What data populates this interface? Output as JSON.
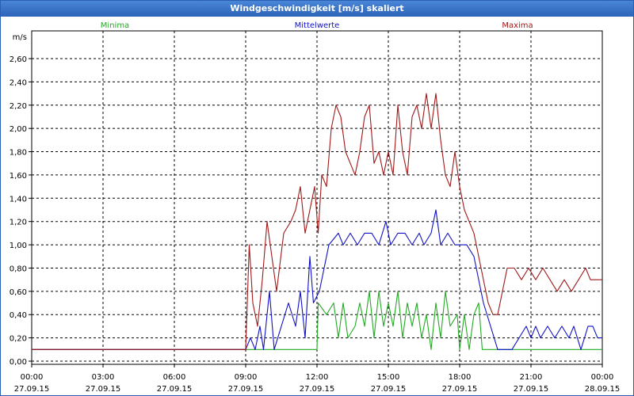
{
  "window": {
    "title": "Windgeschwindigkeit [m/s] skaliert"
  },
  "chart_data": {
    "type": "line",
    "title": "Windgeschwindigkeit [m/s] skaliert",
    "ylabel": "m/s",
    "ylim": [
      0,
      2.8
    ],
    "xlim_hours": [
      0,
      24
    ],
    "grid": true,
    "legend_placement": "top",
    "y_ticks": [
      "0,00",
      "0,20",
      "0,40",
      "0,60",
      "0,80",
      "1,00",
      "1,20",
      "1,40",
      "1,60",
      "1,80",
      "2,00",
      "2,20",
      "2,40",
      "2,60"
    ],
    "x_ticks": [
      {
        "time": "00:00",
        "date": "27.09.15"
      },
      {
        "time": "03:00",
        "date": "27.09.15"
      },
      {
        "time": "06:00",
        "date": "27.09.15"
      },
      {
        "time": "09:00",
        "date": "27.09.15"
      },
      {
        "time": "12:00",
        "date": "27.09.15"
      },
      {
        "time": "15:00",
        "date": "27.09.15"
      },
      {
        "time": "18:00",
        "date": "27.09.15"
      },
      {
        "time": "21:00",
        "date": "27.09.15"
      },
      {
        "time": "00:00",
        "date": "28.09.15"
      }
    ],
    "series": [
      {
        "name": "Minima",
        "color": "#22aa22",
        "points": [
          [
            0,
            0.1
          ],
          [
            12.0,
            0.1
          ],
          [
            12.05,
            0.5
          ],
          [
            12.4,
            0.4
          ],
          [
            12.7,
            0.5
          ],
          [
            12.9,
            0.2
          ],
          [
            13.1,
            0.5
          ],
          [
            13.3,
            0.2
          ],
          [
            13.6,
            0.3
          ],
          [
            13.8,
            0.5
          ],
          [
            14.0,
            0.3
          ],
          [
            14.2,
            0.6
          ],
          [
            14.4,
            0.2
          ],
          [
            14.6,
            0.6
          ],
          [
            14.8,
            0.3
          ],
          [
            15.0,
            0.5
          ],
          [
            15.2,
            0.3
          ],
          [
            15.4,
            0.6
          ],
          [
            15.6,
            0.2
          ],
          [
            15.8,
            0.5
          ],
          [
            16.0,
            0.3
          ],
          [
            16.2,
            0.5
          ],
          [
            16.4,
            0.2
          ],
          [
            16.6,
            0.4
          ],
          [
            16.8,
            0.1
          ],
          [
            17.0,
            0.5
          ],
          [
            17.2,
            0.2
          ],
          [
            17.4,
            0.6
          ],
          [
            17.6,
            0.3
          ],
          [
            17.9,
            0.4
          ],
          [
            18.0,
            0.1
          ],
          [
            18.2,
            0.4
          ],
          [
            18.4,
            0.1
          ],
          [
            18.6,
            0.4
          ],
          [
            18.8,
            0.5
          ],
          [
            18.95,
            0.1
          ],
          [
            24,
            0.1
          ]
        ]
      },
      {
        "name": "Mittelwerte",
        "color": "#1010c8",
        "points": [
          [
            0,
            0.1
          ],
          [
            9.0,
            0.1
          ],
          [
            9.2,
            0.2
          ],
          [
            9.4,
            0.1
          ],
          [
            9.6,
            0.3
          ],
          [
            9.75,
            0.1
          ],
          [
            10.0,
            0.6
          ],
          [
            10.2,
            0.1
          ],
          [
            10.5,
            0.3
          ],
          [
            10.8,
            0.5
          ],
          [
            11.1,
            0.3
          ],
          [
            11.3,
            0.6
          ],
          [
            11.5,
            0.2
          ],
          [
            11.7,
            0.9
          ],
          [
            11.85,
            0.5
          ],
          [
            12.1,
            0.6
          ],
          [
            12.5,
            1.0
          ],
          [
            12.9,
            1.1
          ],
          [
            13.1,
            1.0
          ],
          [
            13.4,
            1.1
          ],
          [
            13.7,
            1.0
          ],
          [
            14.0,
            1.1
          ],
          [
            14.3,
            1.1
          ],
          [
            14.6,
            1.0
          ],
          [
            14.9,
            1.2
          ],
          [
            15.1,
            1.0
          ],
          [
            15.4,
            1.1
          ],
          [
            15.7,
            1.1
          ],
          [
            16.0,
            1.0
          ],
          [
            16.3,
            1.1
          ],
          [
            16.5,
            1.0
          ],
          [
            16.8,
            1.1
          ],
          [
            17.0,
            1.3
          ],
          [
            17.2,
            1.0
          ],
          [
            17.5,
            1.1
          ],
          [
            17.8,
            1.0
          ],
          [
            18.0,
            1.0
          ],
          [
            18.3,
            1.0
          ],
          [
            18.6,
            0.9
          ],
          [
            18.8,
            0.7
          ],
          [
            19.0,
            0.5
          ],
          [
            19.3,
            0.3
          ],
          [
            19.6,
            0.1
          ],
          [
            20.2,
            0.1
          ],
          [
            20.5,
            0.2
          ],
          [
            20.8,
            0.3
          ],
          [
            21.0,
            0.2
          ],
          [
            21.2,
            0.3
          ],
          [
            21.4,
            0.2
          ],
          [
            21.7,
            0.3
          ],
          [
            22.0,
            0.2
          ],
          [
            22.3,
            0.3
          ],
          [
            22.6,
            0.2
          ],
          [
            22.8,
            0.3
          ],
          [
            23.1,
            0.1
          ],
          [
            23.4,
            0.3
          ],
          [
            23.6,
            0.3
          ],
          [
            23.8,
            0.2
          ],
          [
            24,
            0.2
          ]
        ]
      },
      {
        "name": "Maxima",
        "color": "#a01818",
        "points": [
          [
            0,
            0.1
          ],
          [
            9.0,
            0.1
          ],
          [
            9.15,
            1.0
          ],
          [
            9.3,
            0.5
          ],
          [
            9.5,
            0.3
          ],
          [
            9.7,
            0.7
          ],
          [
            9.9,
            1.2
          ],
          [
            10.1,
            0.9
          ],
          [
            10.3,
            0.6
          ],
          [
            10.6,
            1.1
          ],
          [
            10.9,
            1.2
          ],
          [
            11.1,
            1.3
          ],
          [
            11.3,
            1.5
          ],
          [
            11.5,
            1.1
          ],
          [
            11.7,
            1.3
          ],
          [
            11.9,
            1.5
          ],
          [
            12.05,
            1.1
          ],
          [
            12.2,
            1.6
          ],
          [
            12.4,
            1.5
          ],
          [
            12.6,
            2.0
          ],
          [
            12.8,
            2.2
          ],
          [
            13.0,
            2.1
          ],
          [
            13.2,
            1.8
          ],
          [
            13.4,
            1.7
          ],
          [
            13.6,
            1.6
          ],
          [
            13.8,
            1.8
          ],
          [
            14.0,
            2.1
          ],
          [
            14.2,
            2.2
          ],
          [
            14.4,
            1.7
          ],
          [
            14.6,
            1.8
          ],
          [
            14.8,
            1.6
          ],
          [
            15.0,
            1.8
          ],
          [
            15.2,
            1.6
          ],
          [
            15.4,
            2.2
          ],
          [
            15.6,
            1.8
          ],
          [
            15.8,
            1.6
          ],
          [
            16.0,
            2.1
          ],
          [
            16.2,
            2.2
          ],
          [
            16.4,
            2.0
          ],
          [
            16.6,
            2.3
          ],
          [
            16.8,
            2.0
          ],
          [
            17.0,
            2.3
          ],
          [
            17.2,
            1.9
          ],
          [
            17.4,
            1.6
          ],
          [
            17.6,
            1.5
          ],
          [
            17.8,
            1.8
          ],
          [
            18.0,
            1.5
          ],
          [
            18.2,
            1.3
          ],
          [
            18.4,
            1.2
          ],
          [
            18.6,
            1.1
          ],
          [
            18.8,
            0.9
          ],
          [
            19.0,
            0.7
          ],
          [
            19.2,
            0.5
          ],
          [
            19.4,
            0.4
          ],
          [
            19.6,
            0.4
          ],
          [
            19.8,
            0.6
          ],
          [
            20.0,
            0.8
          ],
          [
            20.3,
            0.8
          ],
          [
            20.6,
            0.7
          ],
          [
            20.9,
            0.8
          ],
          [
            21.2,
            0.7
          ],
          [
            21.5,
            0.8
          ],
          [
            21.8,
            0.7
          ],
          [
            22.1,
            0.6
          ],
          [
            22.4,
            0.7
          ],
          [
            22.7,
            0.6
          ],
          [
            23.0,
            0.7
          ],
          [
            23.3,
            0.8
          ],
          [
            23.5,
            0.7
          ],
          [
            24,
            0.7
          ]
        ]
      }
    ]
  }
}
